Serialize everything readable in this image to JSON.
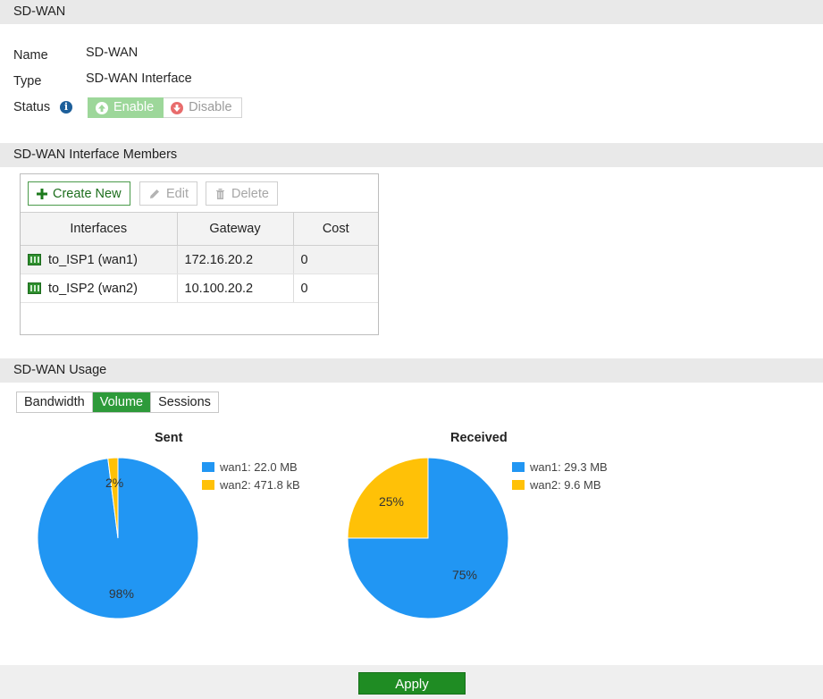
{
  "sections": {
    "main": "SD-WAN",
    "members": "SD-WAN Interface Members",
    "usage": "SD-WAN Usage"
  },
  "fields": {
    "name_label": "Name",
    "name_value": "SD-WAN",
    "type_label": "Type",
    "type_value": "SD-WAN Interface",
    "status_label": "Status"
  },
  "status": {
    "enable_label": "Enable",
    "disable_label": "Disable",
    "selected": "Enable"
  },
  "toolbar": {
    "create_label": "Create New",
    "edit_label": "Edit",
    "delete_label": "Delete"
  },
  "table": {
    "columns": [
      "Interfaces",
      "Gateway",
      "Cost"
    ],
    "rows": [
      {
        "interface": "to_ISP1 (wan1)",
        "gateway": "172.16.20.2",
        "cost": "0"
      },
      {
        "interface": "to_ISP2 (wan2)",
        "gateway": "10.100.20.2",
        "cost": "0"
      }
    ]
  },
  "usage_tabs": [
    {
      "label": "Bandwidth",
      "active": false
    },
    {
      "label": "Volume",
      "active": true
    },
    {
      "label": "Sessions",
      "active": false
    }
  ],
  "colors": {
    "wan1": "#2196f3",
    "wan2": "#ffc107",
    "accent_green": "#2e9a3a"
  },
  "chart_data": [
    {
      "type": "pie",
      "title": "Sent",
      "series": [
        {
          "name": "wan1: 22.0 MB",
          "value": 98,
          "label": "98%",
          "color": "#2196f3"
        },
        {
          "name": "wan2: 471.8 kB",
          "value": 2,
          "label": "2%",
          "color": "#ffc107"
        }
      ]
    },
    {
      "type": "pie",
      "title": "Received",
      "series": [
        {
          "name": "wan1: 29.3 MB",
          "value": 75,
          "label": "75%",
          "color": "#2196f3"
        },
        {
          "name": "wan2: 9.6 MB",
          "value": 25,
          "label": "25%",
          "color": "#ffc107"
        }
      ]
    }
  ],
  "footer": {
    "apply_label": "Apply"
  }
}
